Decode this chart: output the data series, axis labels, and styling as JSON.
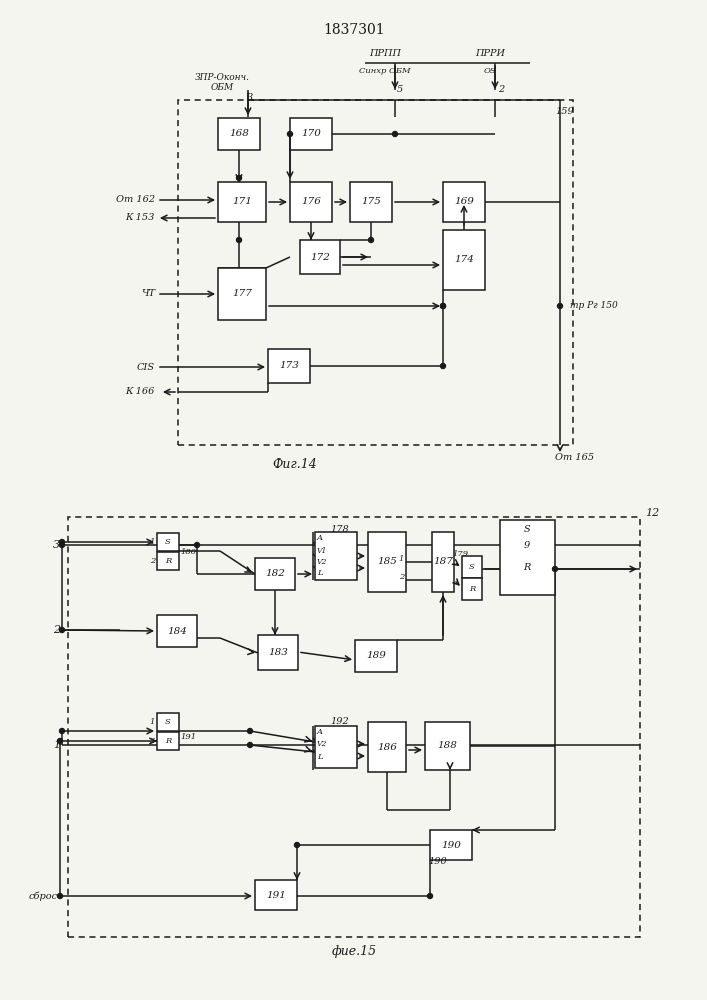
{
  "title": "1837301",
  "fig14_label": "Фиг.14",
  "fig15_label": "фие.15",
  "bg_color": "#f5f5f0",
  "line_color": "#1a1a1a"
}
